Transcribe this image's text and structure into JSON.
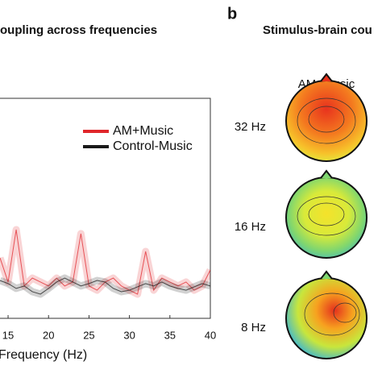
{
  "chart_data": {
    "type": "line",
    "title": "oupling across frequencies",
    "x_label": "Frequency (Hz)",
    "x": [
      14,
      15,
      16,
      17,
      18,
      19,
      20,
      21,
      22,
      23,
      24,
      25,
      26,
      27,
      28,
      29,
      30,
      31,
      32,
      33,
      34,
      35,
      36,
      37,
      38,
      39,
      40
    ],
    "series": [
      {
        "name": "AM+Music",
        "color": "#e0262b",
        "values": [
          2.75,
          1.65,
          4.03,
          1.47,
          1.83,
          1.65,
          1.47,
          1.83,
          1.47,
          1.65,
          3.85,
          1.47,
          1.28,
          1.65,
          1.83,
          1.47,
          1.28,
          1.1,
          3.04,
          1.28,
          1.83,
          1.65,
          1.47,
          1.65,
          1.28,
          1.47,
          2.2
        ]
      },
      {
        "name": "Control-Music",
        "color": "#1a1a1a",
        "values": [
          1.72,
          1.58,
          1.36,
          1.47,
          1.21,
          1.1,
          1.36,
          1.65,
          1.83,
          1.65,
          1.47,
          1.58,
          1.72,
          1.65,
          1.36,
          1.21,
          1.28,
          1.43,
          1.58,
          1.47,
          1.65,
          1.47,
          1.36,
          1.28,
          1.43,
          1.58,
          1.47
        ]
      }
    ],
    "xlim": [
      14,
      40
    ],
    "xticks": [
      15,
      20,
      25,
      30,
      35,
      40
    ],
    "ylim": [
      0,
      10
    ],
    "legend": "upper right"
  },
  "panel_b": {
    "label": "b",
    "title": "Stimulus-brain cou",
    "condition": "AM+Music",
    "maps": [
      {
        "label": "32 Hz"
      },
      {
        "label": "16 Hz"
      },
      {
        "label": "8 Hz"
      }
    ]
  }
}
